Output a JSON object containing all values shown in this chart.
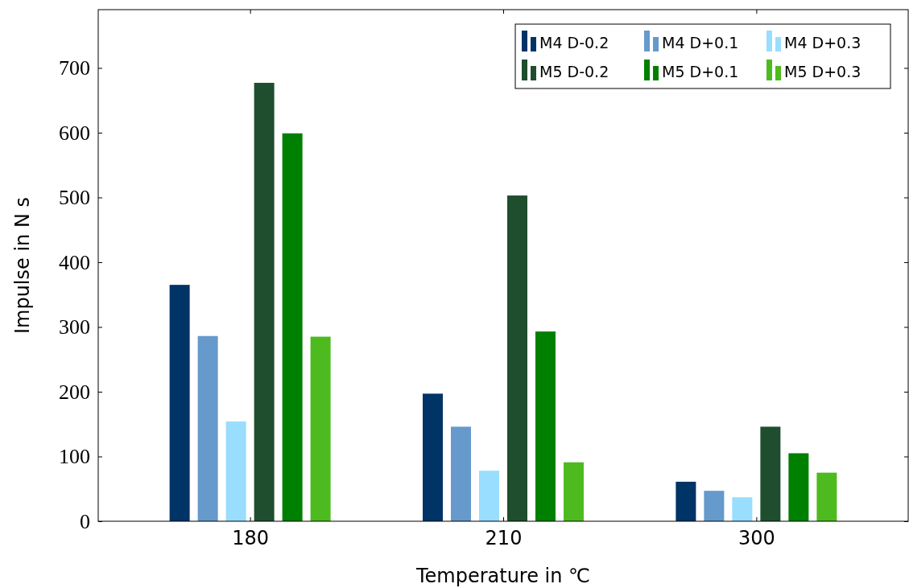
{
  "chart_data": {
    "type": "bar",
    "xlabel": "Temperature in ℃",
    "ylabel": "Impulse in N s",
    "categories": [
      "180",
      "210",
      "300"
    ],
    "series": [
      {
        "name": "M4 D-0.2",
        "color": "#003366",
        "values": [
          365,
          197,
          61
        ]
      },
      {
        "name": "M4 D+0.1",
        "color": "#6699cc",
        "values": [
          286,
          146,
          47
        ]
      },
      {
        "name": "M4 D+0.3",
        "color": "#99ddff",
        "values": [
          154,
          78,
          37
        ]
      },
      {
        "name": "M5 D-0.2",
        "color": "#1f4e2e",
        "values": [
          677,
          503,
          146
        ]
      },
      {
        "name": "M5 D+0.1",
        "color": "#008000",
        "values": [
          599,
          293,
          105
        ]
      },
      {
        "name": "M5 D+0.3",
        "color": "#4dbb1f",
        "values": [
          285,
          91,
          75
        ]
      }
    ],
    "ylim": [
      0,
      790
    ],
    "yticks": [
      0,
      100,
      200,
      300,
      400,
      500,
      600,
      700
    ],
    "grid": false,
    "legend": "top right"
  }
}
